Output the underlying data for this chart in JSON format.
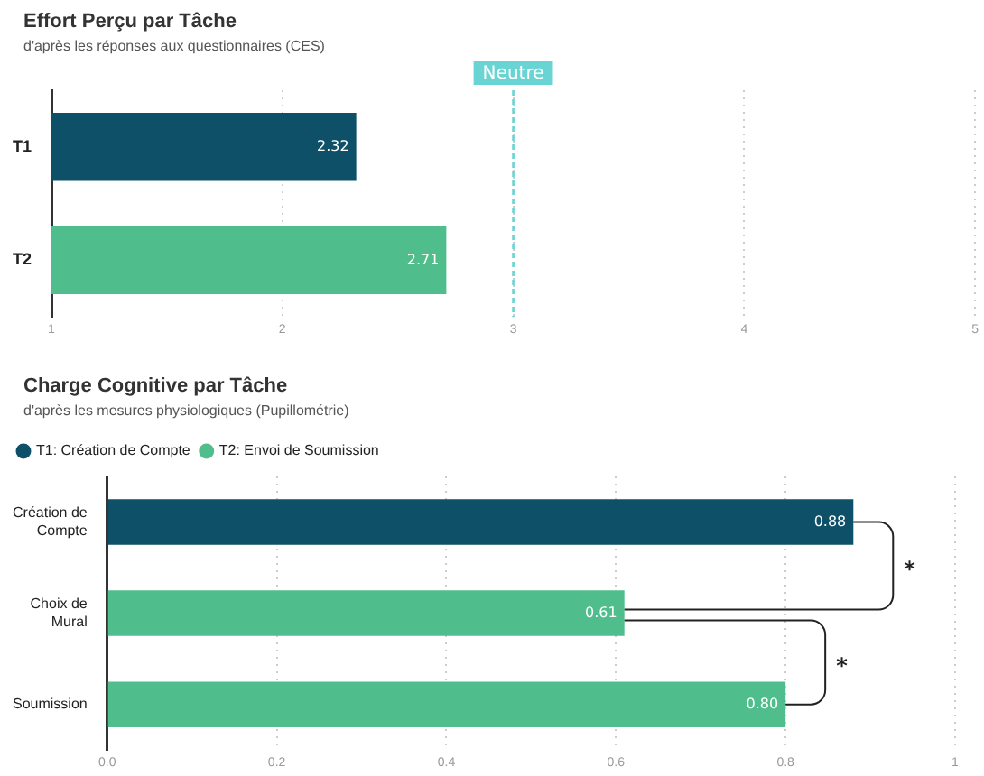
{
  "chart_data": [
    {
      "type": "bar",
      "orientation": "horizontal",
      "title": "Effort Perçu par Tâche",
      "subtitle": "d'après les réponses aux questionnaires (CES)",
      "categories": [
        "T1",
        "T2"
      ],
      "values": [
        2.32,
        2.71
      ],
      "colors": [
        "#0e5068",
        "#50be8c"
      ],
      "xlim": [
        1,
        5
      ],
      "xticks": [
        1,
        2,
        3,
        4,
        5
      ],
      "grid": "x",
      "data_labels": true,
      "legend": false,
      "ref_lines": [
        {
          "axis": "x",
          "value": 3,
          "label": "Neutre",
          "color": "#6ad3d3",
          "line_style": "dashed"
        }
      ]
    },
    {
      "type": "bar",
      "orientation": "horizontal",
      "title": "Charge Cognitive par Tâche",
      "subtitle": "d'après les mesures physiologiques (Pupillométrie)",
      "categories": [
        "Création de Compte",
        "Choix de Mural",
        "Soumission"
      ],
      "series": [
        {
          "name": "T1: Création de Compte",
          "color": "#0e5068",
          "values": [
            0.88,
            null,
            null
          ]
        },
        {
          "name": "T2: Envoi de Soumission",
          "color": "#50be8c",
          "values": [
            null,
            0.61,
            0.8
          ]
        }
      ],
      "value_labels": [
        [
          "0.88",
          null,
          null
        ],
        [
          null,
          "0.61",
          "0.80"
        ]
      ],
      "xlim": [
        0,
        1
      ],
      "xticks": [
        {
          "value": 0,
          "label": "0.0"
        },
        0.2,
        0.4,
        0.6,
        0.8,
        1
      ],
      "grid": "x",
      "legend": "top left",
      "annotations": [
        "*",
        "*"
      ]
    }
  ]
}
